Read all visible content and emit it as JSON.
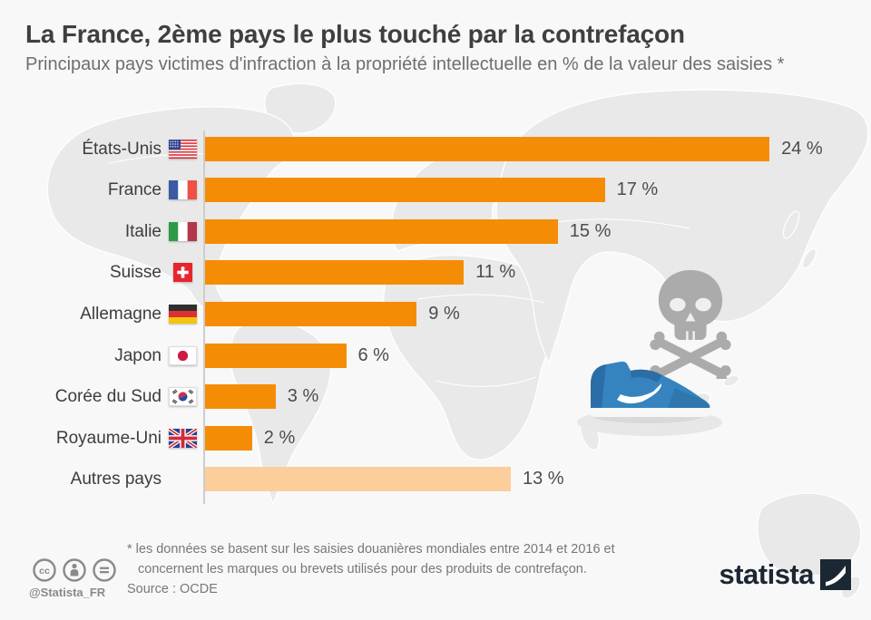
{
  "header": {
    "title": "La France, 2ème pays le plus touché par la contrefaçon",
    "subtitle": "Principaux pays victimes d'infraction à la propriété intellectuelle en % de la valeur des saisies *"
  },
  "chart_data": {
    "type": "bar",
    "orientation": "horizontal",
    "categories": [
      "États-Unis",
      "France",
      "Italie",
      "Suisse",
      "Allemagne",
      "Japon",
      "Corée du Sud",
      "Royaume-Uni",
      "Autres pays"
    ],
    "values": [
      24,
      17,
      15,
      11,
      9,
      6,
      3,
      2,
      13
    ],
    "value_suffix": " %",
    "flags": [
      "us",
      "fr",
      "it",
      "ch",
      "de",
      "jp",
      "kr",
      "gb",
      ""
    ],
    "xlim": [
      0,
      24
    ],
    "grid": false,
    "legend": false,
    "bar_color": "#F58C05",
    "muted_bar_color": "#FBCE9C",
    "muted_index": 8
  },
  "footer": {
    "footnote_line1": "* les données se basent sur les saisies douanières mondiales entre 2014 et 2016 et",
    "footnote_line2": "concernent les marques ou brevets utilisés pour des produits de contrefaçon.",
    "source": "Source : OCDE",
    "handle": "@Statista_FR",
    "logo_text": "statista"
  },
  "colors": {
    "background": "#f8f8f8",
    "map": "#e9e9e9",
    "axis": "#cccccc",
    "skull": "#ababab",
    "shoe_blue": "#3584c0",
    "logo_navy": "#1b2733"
  }
}
